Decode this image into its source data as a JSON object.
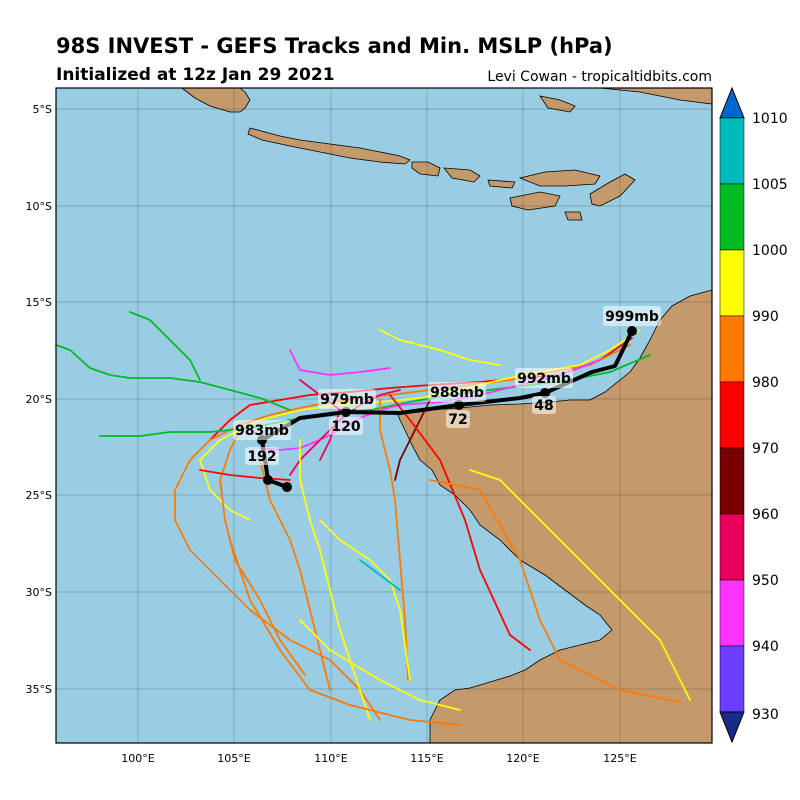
{
  "header": {
    "title": "98S INVEST - GEFS Tracks and Min. MSLP (hPa)",
    "initialized": "Initialized at 12z Jan 29 2021",
    "credit": "Levi Cowan - tropicaltidbits.com"
  },
  "axes": {
    "lat_labels": [
      "5°S",
      "10°S",
      "15°S",
      "20°S",
      "25°S",
      "30°S",
      "35°S"
    ],
    "lon_labels": [
      "100°E",
      "105°E",
      "110°E",
      "115°E",
      "120°E",
      "125°E"
    ]
  },
  "colorbar": {
    "ticks": [
      "930",
      "940",
      "950",
      "960",
      "970",
      "980",
      "990",
      "1000",
      "1005",
      "1010"
    ],
    "colors": [
      "#6a3dff",
      "#ff33ff",
      "#e6005c",
      "#7a0000",
      "#ff0000",
      "#ff7a00",
      "#ffff00",
      "#00bb22",
      "#00bbbb",
      "#0066cc"
    ]
  },
  "mean_track": {
    "labels": [
      {
        "text": "999mb"
      },
      {
        "text": "992mb"
      },
      {
        "text": "48"
      },
      {
        "text": "988mb"
      },
      {
        "text": "72"
      },
      {
        "text": "979mb"
      },
      {
        "text": "120"
      },
      {
        "text": "983mb"
      },
      {
        "text": "192"
      }
    ]
  },
  "colors": {
    "ocean": "#99cde3",
    "land": "#c49a6c"
  }
}
